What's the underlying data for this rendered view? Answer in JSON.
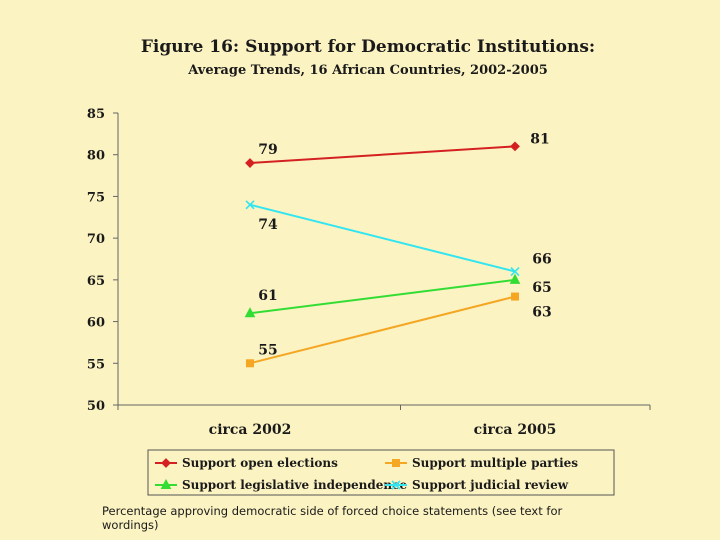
{
  "chart_data": {
    "type": "line",
    "title": "Figure 16:  Support for Democratic Institutions:",
    "subtitle": "Average Trends, 16 African Countries, 2002-2005",
    "categories": [
      "circa 2002",
      "circa 2005"
    ],
    "ylim": [
      50,
      85
    ],
    "y_ticks": [
      50,
      55,
      60,
      65,
      70,
      75,
      80,
      85
    ],
    "grid": false,
    "legend_position": "bottom",
    "series": [
      {
        "name": "Support open elections",
        "values": [
          79,
          81
        ],
        "color": "#d42020",
        "marker": "diamond",
        "value_labels": [
          "79",
          "81"
        ]
      },
      {
        "name": "Support multiple parties",
        "values": [
          55,
          63
        ],
        "color": "#f5a623",
        "marker": "square",
        "value_labels": [
          "55",
          "63"
        ]
      },
      {
        "name": "Support legislative independence",
        "values": [
          61,
          65
        ],
        "color": "#33dd33",
        "marker": "triangle",
        "value_labels": [
          "61",
          "65"
        ]
      },
      {
        "name": "Support judicial review",
        "values": [
          74,
          66
        ],
        "color": "#33e5f0",
        "marker": "x",
        "value_labels": [
          "74",
          "66"
        ]
      }
    ]
  },
  "footnote": "Percentage approving democratic side of forced choice statements (see text for wordings)"
}
